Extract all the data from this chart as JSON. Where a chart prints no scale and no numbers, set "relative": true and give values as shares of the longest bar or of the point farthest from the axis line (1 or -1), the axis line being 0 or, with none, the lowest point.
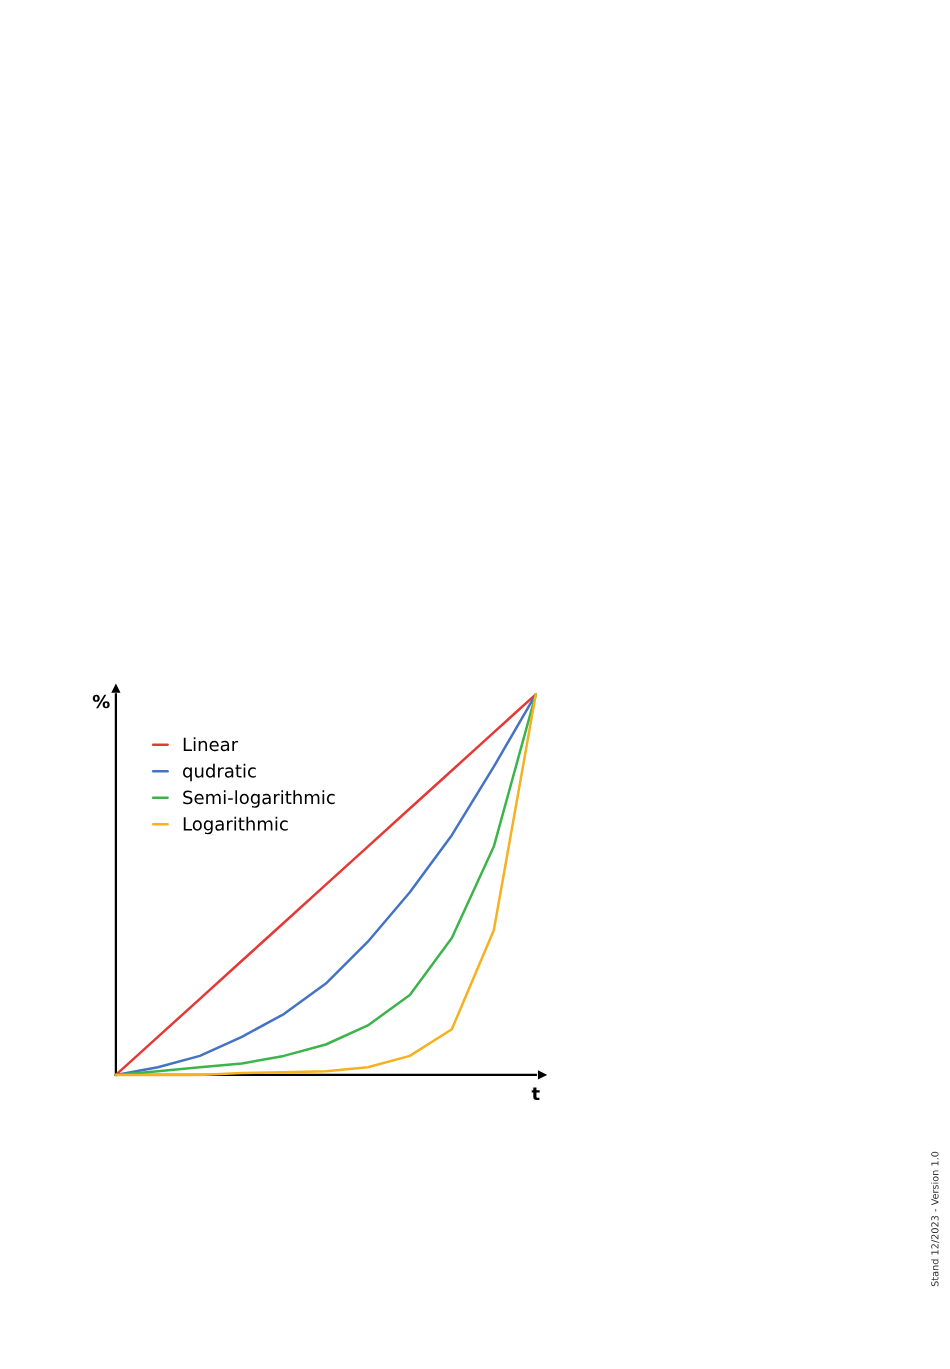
{
  "chart_data": {
    "type": "line",
    "relative": true,
    "xlabel": "t",
    "ylabel": "%",
    "legend": "top left",
    "tick_labels": false,
    "categories": [
      null,
      null,
      null,
      null,
      null,
      null,
      null,
      null,
      null,
      null,
      null
    ],
    "series": [
      {
        "name": "Linear",
        "color": "#e53935",
        "values": [
          0,
          0.1,
          0.2,
          0.3,
          0.4,
          0.5,
          0.6,
          0.7,
          0.8,
          0.9,
          1
        ]
      },
      {
        "name": "qudratic",
        "color": "#4472c4",
        "values": [
          0,
          0.02,
          0.05,
          0.1,
          0.16,
          0.24,
          0.35,
          0.48,
          0.63,
          0.81,
          1
        ]
      },
      {
        "name": "Semi-logarithmic",
        "color": "#3cb44b",
        "values": [
          0,
          0.01,
          0.02,
          0.03,
          0.05,
          0.08,
          0.13,
          0.21,
          0.36,
          0.6,
          1
        ]
      },
      {
        "name": "Logarithmic",
        "color": "#f5b120",
        "values": [
          0,
          0,
          0,
          0.005,
          0.007,
          0.01,
          0.02,
          0.05,
          0.12,
          0.38,
          1
        ]
      }
    ],
    "annotations": [
      "Stand 12/2023 - Version 1.0"
    ]
  }
}
